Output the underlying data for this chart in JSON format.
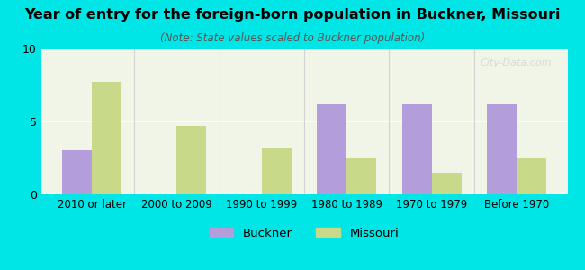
{
  "title": "Year of entry for the foreign-born population in Buckner, Missouri",
  "subtitle": "(Note: State values scaled to Buckner population)",
  "categories": [
    "2010 or later",
    "2000 to 2009",
    "1990 to 1999",
    "1980 to 1989",
    "1970 to 1979",
    "Before 1970"
  ],
  "buckner_values": [
    3.0,
    0.0,
    0.0,
    6.2,
    6.2,
    6.2
  ],
  "missouri_values": [
    7.7,
    4.7,
    3.2,
    2.5,
    1.5,
    2.5
  ],
  "buckner_color": "#b39ddb",
  "missouri_color": "#c8d98a",
  "background_color": "#00e5e5",
  "plot_bg_color": "#f0f5e8",
  "ylim": [
    0,
    10
  ],
  "yticks": [
    0,
    5,
    10
  ],
  "bar_width": 0.35,
  "legend_buckner": "Buckner",
  "legend_missouri": "Missouri",
  "watermark": "City-Data.com"
}
